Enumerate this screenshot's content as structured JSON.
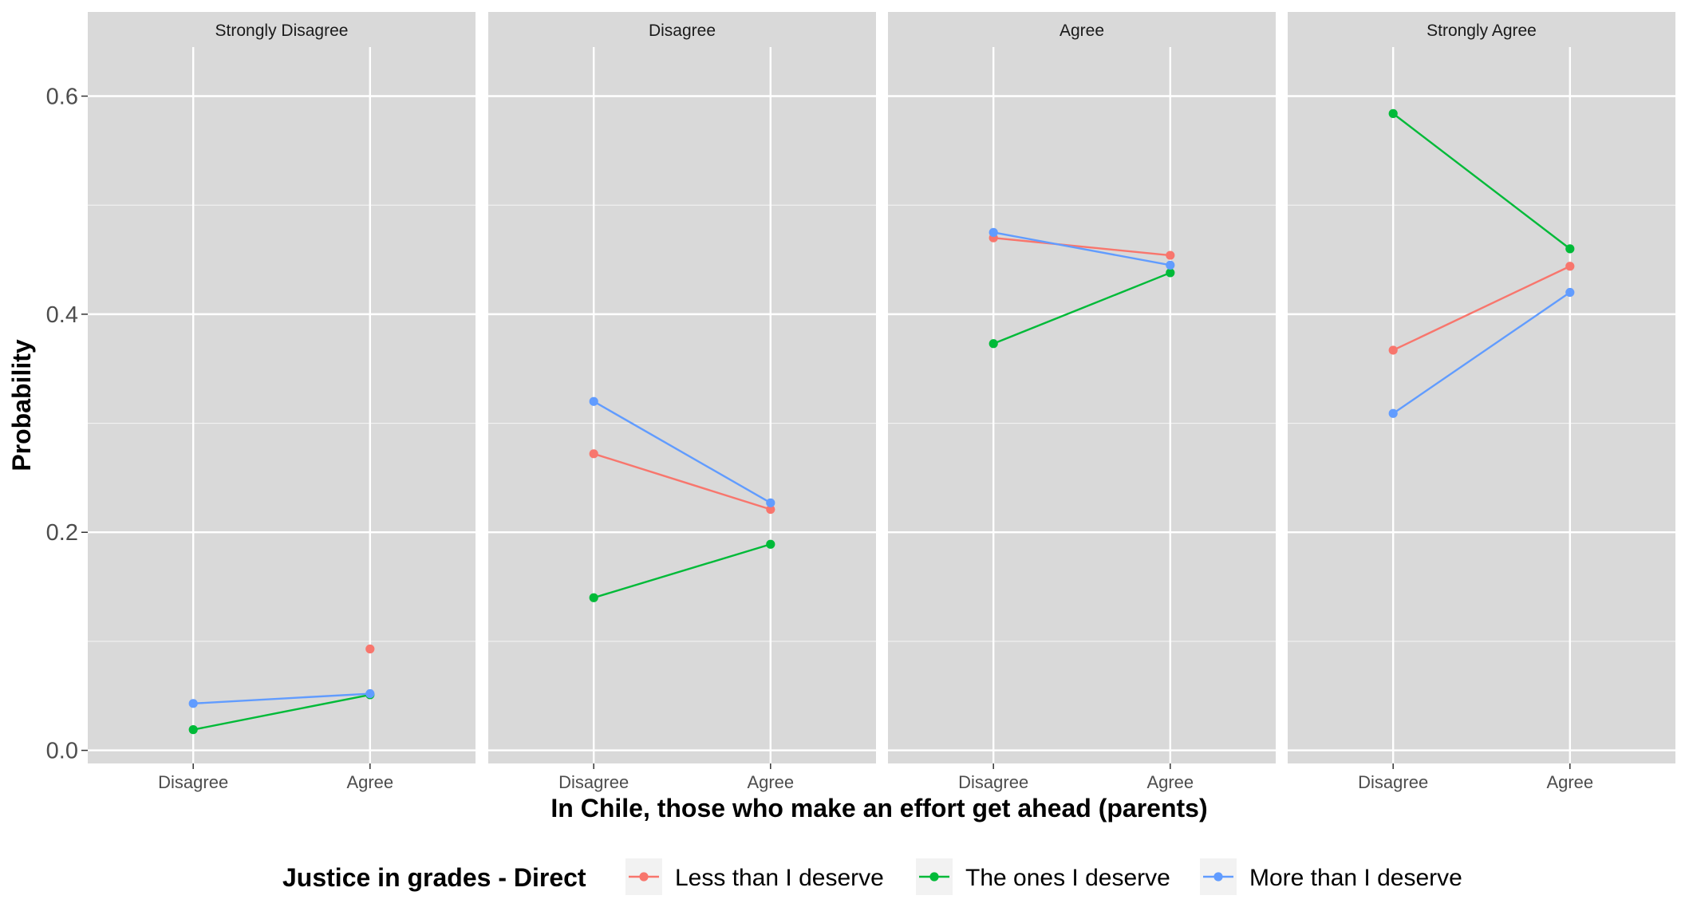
{
  "chart_data": {
    "type": "line",
    "ylabel": "Probability",
    "xlabel": "In Chile, those who make an effort get ahead (parents)",
    "ylim": [
      -0.012,
      0.645
    ],
    "y_ticks": [
      0.0,
      0.2,
      0.4,
      0.6
    ],
    "y_tick_labels": [
      "0.0",
      "0.2",
      "0.4",
      "0.6"
    ],
    "categories": [
      "Disagree",
      "Agree"
    ],
    "grid": true,
    "legend": {
      "title": "Justice in grades - Direct",
      "position": "bottom"
    },
    "series_meta": [
      {
        "name": "Less than I deserve",
        "color": "#f8766d"
      },
      {
        "name": "The ones I deserve",
        "color": "#00ba38"
      },
      {
        "name": "More than I deserve",
        "color": "#619cff"
      }
    ],
    "panels": [
      {
        "title": "Strongly Disagree",
        "series": [
          {
            "name": "Less than I deserve",
            "values": [
              null,
              0.093
            ]
          },
          {
            "name": "The ones I deserve",
            "values": [
              0.019,
              0.051
            ]
          },
          {
            "name": "More than I deserve",
            "values": [
              0.043,
              0.052
            ]
          }
        ]
      },
      {
        "title": "Disagree",
        "series": [
          {
            "name": "Less than I deserve",
            "values": [
              0.272,
              0.221
            ]
          },
          {
            "name": "The ones I deserve",
            "values": [
              0.14,
              0.189
            ]
          },
          {
            "name": "More than I deserve",
            "values": [
              0.32,
              0.227
            ]
          }
        ]
      },
      {
        "title": "Agree",
        "series": [
          {
            "name": "Less than I deserve",
            "values": [
              0.47,
              0.454
            ]
          },
          {
            "name": "The ones I deserve",
            "values": [
              0.373,
              0.438
            ]
          },
          {
            "name": "More than I deserve",
            "values": [
              0.475,
              0.445
            ]
          }
        ]
      },
      {
        "title": "Strongly Agree",
        "series": [
          {
            "name": "Less than I deserve",
            "values": [
              0.367,
              0.444
            ]
          },
          {
            "name": "The ones I deserve",
            "values": [
              0.584,
              0.46
            ]
          },
          {
            "name": "More than I deserve",
            "values": [
              0.309,
              0.42
            ]
          }
        ]
      }
    ]
  }
}
